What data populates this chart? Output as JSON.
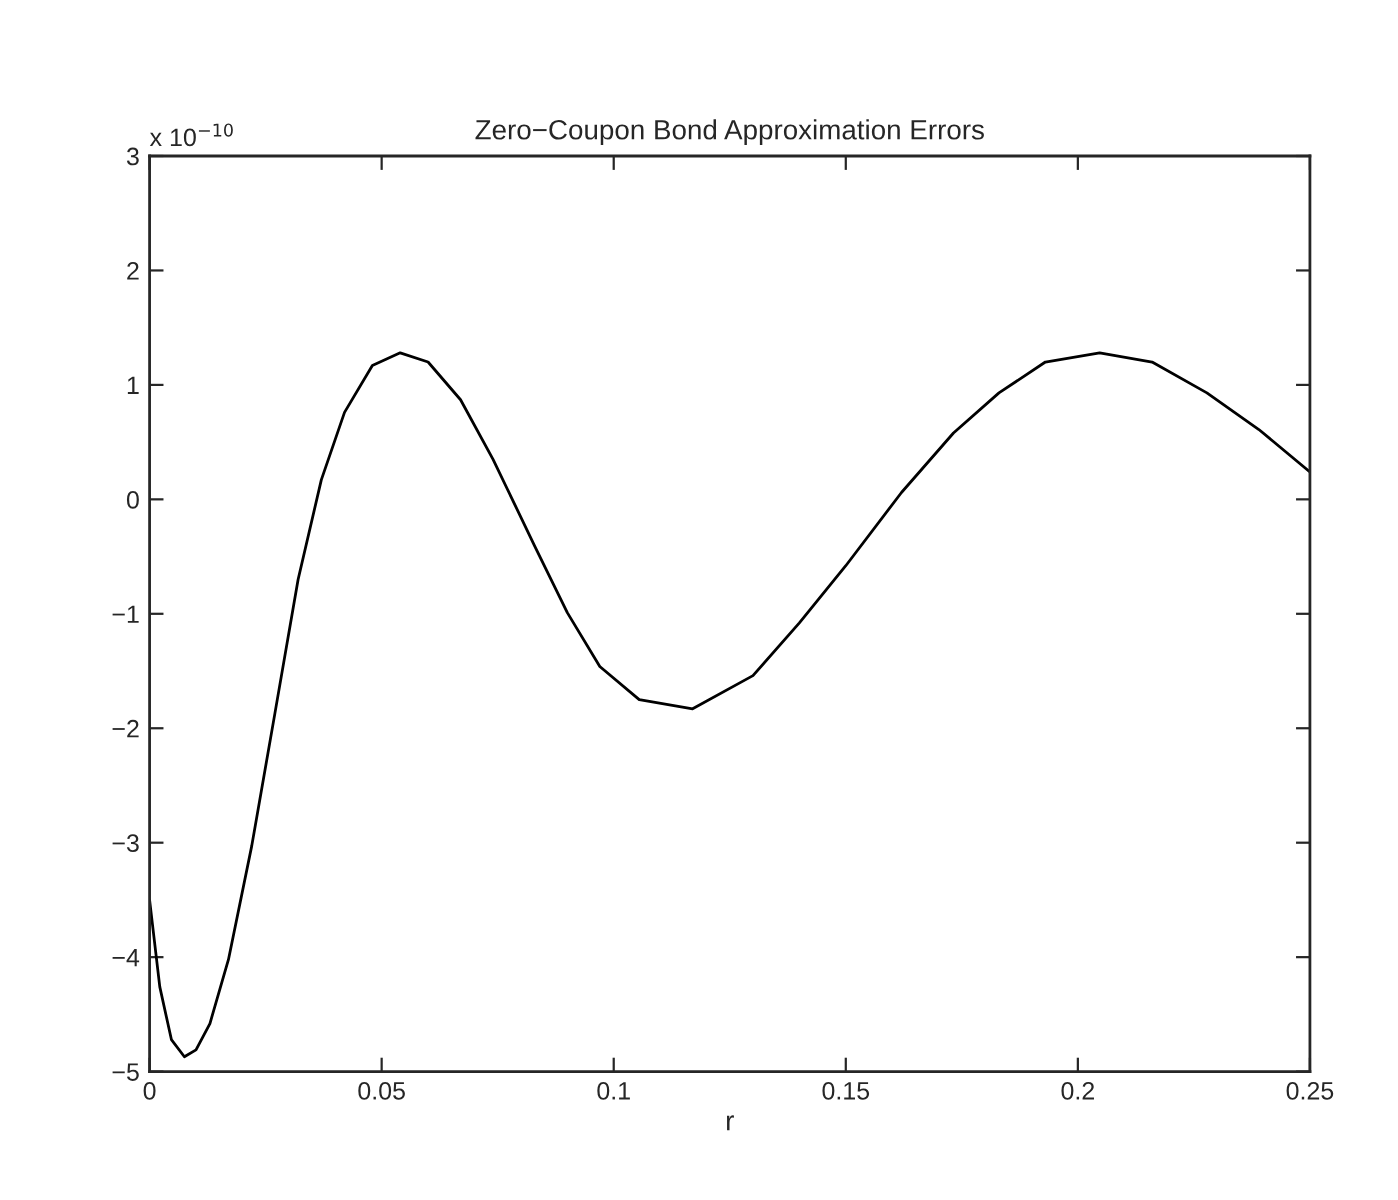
{
  "chart_data": {
    "type": "line",
    "title": "Zero−Coupon Bond Approximation Errors",
    "xlabel": "r",
    "annotations": [
      "x 10$^{−10}$"
    ],
    "x": [
      0,
      0.0022,
      0.0047,
      0.0075,
      0.01,
      0.013,
      0.017,
      0.022,
      0.027,
      0.032,
      0.037,
      0.042,
      0.048,
      0.054,
      0.06,
      0.067,
      0.074,
      0.083,
      0.09,
      0.097,
      0.1055,
      0.117,
      0.13,
      0.14,
      0.15,
      0.162,
      0.1732,
      0.183,
      0.193,
      0.2047,
      0.216,
      0.2278,
      0.239,
      0.25
    ],
    "series": [
      {
        "color": "#000000",
        "values": [
          -3.5,
          -4.26,
          -4.72,
          -4.87,
          -4.81,
          -4.58,
          -4.02,
          -3.03,
          -1.87,
          -0.7,
          0.17,
          0.76,
          1.17,
          1.28,
          1.2,
          0.87,
          0.35,
          -0.41,
          -0.99,
          -1.46,
          -1.75,
          -1.83,
          -1.54,
          -1.08,
          -0.58,
          0.06,
          0.58,
          0.93,
          1.2,
          1.28,
          1.2,
          0.93,
          0.61,
          0.24
        ]
      }
    ],
    "xlim": [
      0,
      0.25
    ],
    "xticks": [
      0,
      0.05,
      0.1,
      0.15,
      0.2,
      0.25
    ],
    "ylim": [
      -5,
      3
    ],
    "yticks": [
      -5,
      -4,
      -3,
      -2,
      -1,
      0,
      1,
      2,
      3
    ],
    "grid": false,
    "marker": "none",
    "line_style": "solid"
  }
}
